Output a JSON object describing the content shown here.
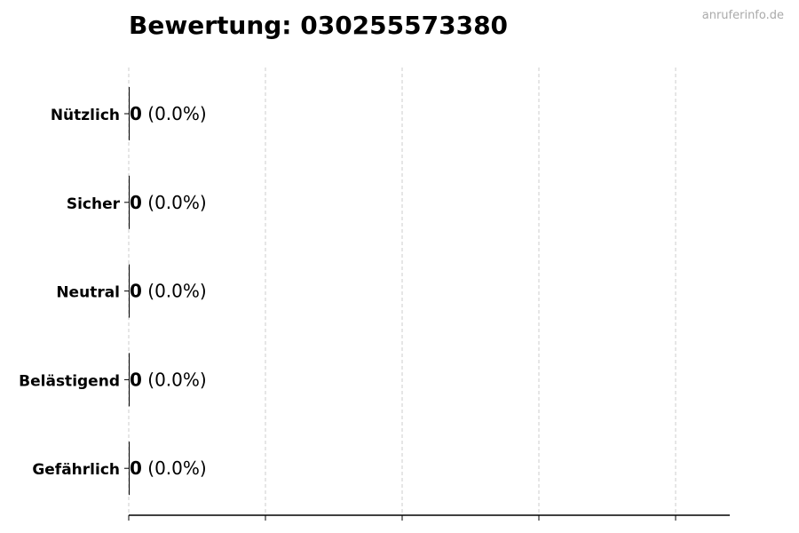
{
  "chart_data": {
    "type": "bar",
    "orientation": "horizontal",
    "title": "Bewertung: 030255573380",
    "categories": [
      "Nützlich",
      "Sicher",
      "Neutral",
      "Belästigend",
      "Gefährlich"
    ],
    "values": [
      0,
      0,
      0,
      0,
      0
    ],
    "value_labels": [
      "0",
      "0",
      "0",
      "0",
      "0"
    ],
    "percent_labels": [
      "(0.0%)",
      "(0.0%)",
      "(0.0%)",
      "(0.0%)",
      "(0.0%)"
    ],
    "grid": "vertical dashed",
    "x_tick_labels": "none",
    "bar_color": "#000000"
  },
  "watermark": "anruferinfo.de"
}
